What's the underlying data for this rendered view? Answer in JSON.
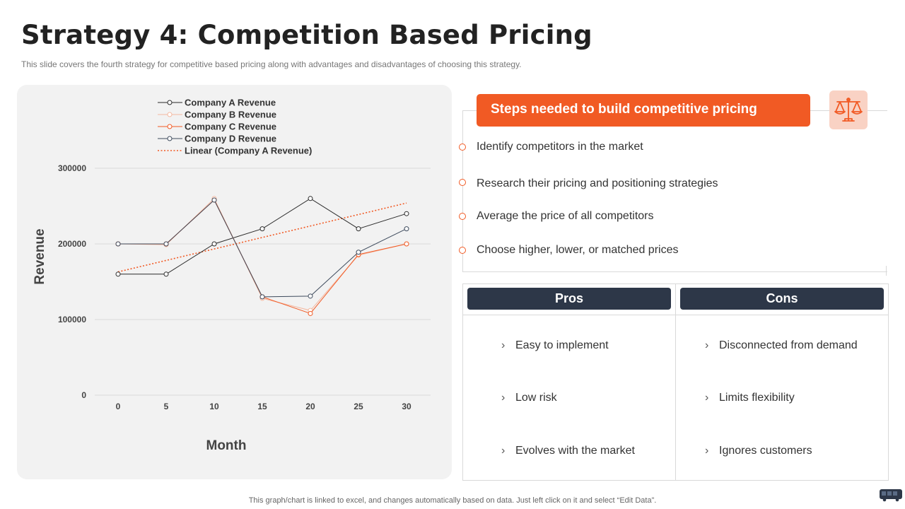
{
  "header": {
    "title": "Strategy 4: Competition Based Pricing",
    "subtitle": "This slide covers the fourth strategy for competitive based pricing along with advantages  and disadvantages  of choosing this strategy."
  },
  "chart_data": {
    "type": "line",
    "title": "",
    "xlabel": "Month",
    "ylabel": "Revenue",
    "x": [
      0,
      5,
      10,
      15,
      20,
      25,
      30
    ],
    "xticks": [
      "0",
      "5",
      "10",
      "15",
      "20",
      "25",
      "30"
    ],
    "yticks": [
      "0",
      "100000",
      "200000",
      "300000"
    ],
    "ylim": [
      0,
      300000
    ],
    "grid": true,
    "legend_position": "top",
    "series": [
      {
        "name": "Company A Revenue",
        "color": "#2b2b2b",
        "values": [
          160000,
          160000,
          200000,
          220000,
          260000,
          220000,
          240000
        ]
      },
      {
        "name": "Company B Revenue",
        "color": "#f4b8a0",
        "values": [
          200000,
          199000,
          260000,
          128000,
          112000,
          185000,
          200000
        ]
      },
      {
        "name": "Company C Revenue",
        "color": "#f15a24",
        "values": [
          200000,
          200000,
          258000,
          130000,
          108000,
          186000,
          200000
        ]
      },
      {
        "name": "Company D Revenue",
        "color": "#3d4a5c",
        "values": [
          200000,
          200000,
          258000,
          130000,
          131000,
          189000,
          220000
        ]
      }
    ],
    "trendline": {
      "name": "Linear (Company A Revenue)",
      "color": "#f15a24",
      "start": 163000,
      "end": 254000
    }
  },
  "steps": {
    "title": "Steps needed to build competitive pricing",
    "icon": "balance-scale-icon",
    "items": [
      "Identify  competitors in the market",
      "Research their pricing and positioning strategies",
      "Average the price of all competitors",
      "Choose higher,  lower,  or matched prices"
    ]
  },
  "pros": {
    "title": "Pros",
    "items": [
      "Easy to implement",
      "Low risk",
      "Evolves with the market"
    ]
  },
  "cons": {
    "title": "Cons",
    "items": [
      "Disconnected from demand",
      "Limits flexibility",
      "Ignores  customers"
    ]
  },
  "footer": {
    "note": "This graph/chart is linked to excel,  and changes automatically based on data. Just left click on it and select “Edit Data”."
  },
  "colors": {
    "accent": "#f15a24",
    "dark": "#2d3748"
  }
}
